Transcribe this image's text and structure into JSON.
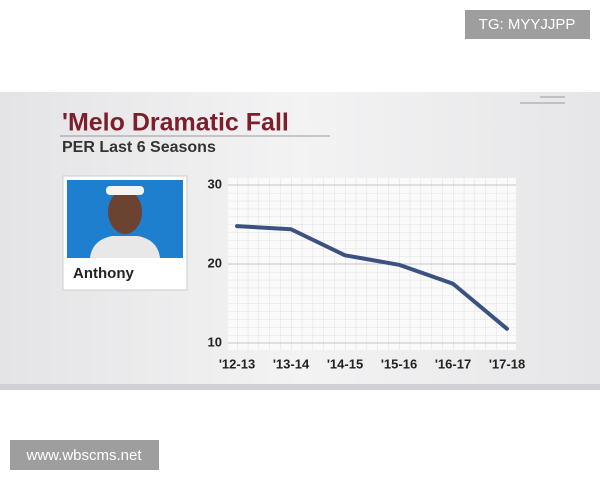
{
  "chart_data": {
    "type": "line",
    "title": "'Melo Dramatic Fall",
    "subtitle": "PER Last 6 Seasons",
    "player_label": "Anthony",
    "categories": [
      "'12-13",
      "'13-14",
      "'14-15",
      "'15-16",
      "'16-17",
      "'17-18"
    ],
    "values": [
      24.8,
      24.4,
      21.1,
      19.9,
      17.5,
      11.8
    ],
    "color": "#3b5281",
    "ylim": [
      10,
      30
    ],
    "yticks": [
      10,
      20,
      30
    ],
    "grid": true
  },
  "watermarks": {
    "top": "TG: MYYJJPP",
    "bottom": "www.wbscms.net"
  }
}
